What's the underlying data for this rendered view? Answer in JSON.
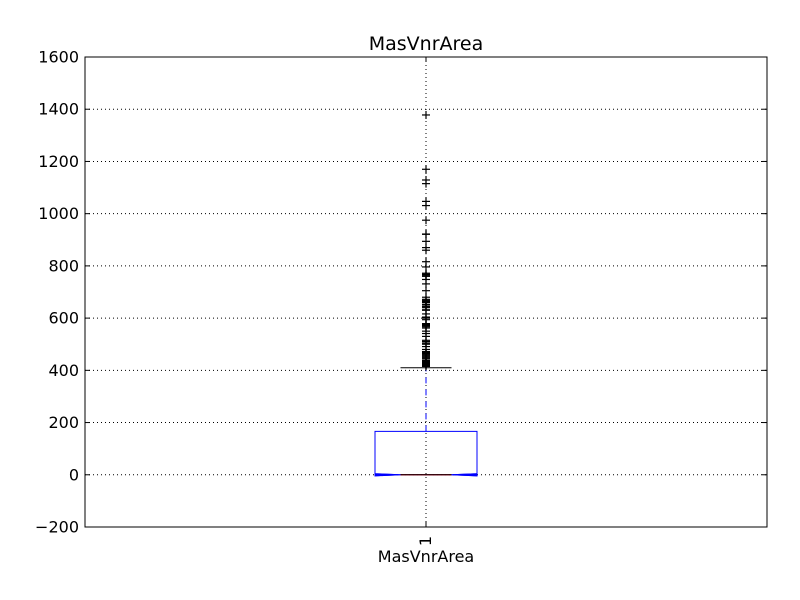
{
  "chart_data": {
    "type": "box",
    "title": "MasVnrArea",
    "xlabel": "MasVnrArea",
    "ylabel": "",
    "ylim": [
      -200,
      1600
    ],
    "yticks": [
      -200,
      0,
      200,
      400,
      600,
      800,
      1000,
      1200,
      1400,
      1600
    ],
    "ytick_labels": [
      "−200",
      "0",
      "200",
      "400",
      "600",
      "800",
      "1000",
      "1200",
      "1400",
      "1600"
    ],
    "categories": [
      "1"
    ],
    "grid": true,
    "notched": true,
    "series": [
      {
        "whisker_low": 0,
        "q1": 0,
        "median": 0,
        "q3": 166,
        "whisker_high": 410,
        "notch_low": -4,
        "notch_high": 4,
        "outliers": [
          1378,
          1170,
          1129,
          1115,
          1047,
          1031,
          975,
          922,
          921,
          894,
          870,
          860,
          816,
          796,
          772,
          768,
          766,
          762,
          760,
          748,
          731,
          705,
          680,
          672,
          668,
          664,
          660,
          653,
          651,
          650,
          644,
          640,
          632,
          630,
          616,
          604,
          600,
          594,
          579,
          576,
          573,
          571,
          567,
          562,
          550,
          541,
          530,
          515,
          510,
          504,
          500,
          491,
          480,
          472,
          468,
          466,
          464,
          460,
          456,
          452,
          448,
          444,
          438,
          435,
          432,
          428,
          426,
          424,
          423,
          420,
          418,
          415
        ]
      }
    ],
    "colors": {
      "box": "#0000ff",
      "median": "#ff0000",
      "whisker": "#0000ff",
      "cap": "#000000",
      "flier": "#000000",
      "grid": "#000000"
    }
  }
}
